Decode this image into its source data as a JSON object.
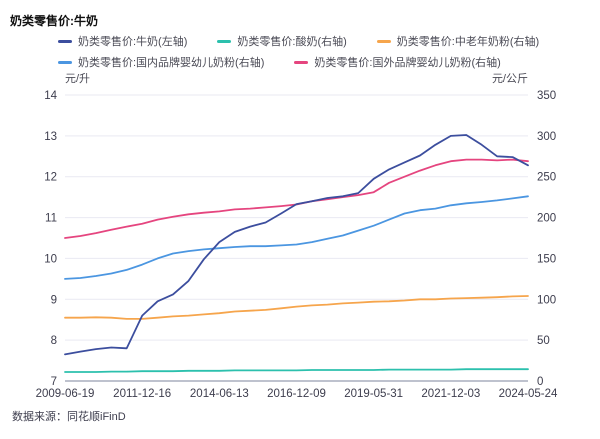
{
  "title": "奶类零售价:牛奶",
  "footer": {
    "source": "数据来源：同花顺iFinD"
  },
  "colors": {
    "milk": "#3c4e9e",
    "yogurt": "#2cc0ad",
    "senior_powder": "#f6a54c",
    "domestic_infant": "#4b96e1",
    "foreign_infant": "#e5457f",
    "grid": "#e9e9f2",
    "axis_line": "#a9adbe",
    "tick_text": "#3d3d4d"
  },
  "chart_data": {
    "type": "line",
    "title": "奶类零售价:牛奶",
    "x_tick_labels": [
      "2009-06-19",
      "2011-12-16",
      "2014-06-13",
      "2016-12-09",
      "2019-05-31",
      "2021-12-03",
      "2024-05-24"
    ],
    "left_axis": {
      "unit": "元/升",
      "min": 7,
      "max": 14,
      "ticks": [
        14,
        13,
        12,
        11,
        10,
        9,
        8,
        7
      ]
    },
    "right_axis": {
      "unit": "元/公斤",
      "min": 0,
      "max": 350,
      "ticks": [
        350,
        300,
        250,
        200,
        150,
        100,
        50,
        0
      ]
    },
    "grid": true,
    "legend_position": "top",
    "series": [
      {
        "name": "奶类零售价:牛奶(左轴)",
        "axis": "left",
        "color": "#3c4e9e",
        "values": [
          7.65,
          7.72,
          7.78,
          7.82,
          7.8,
          8.6,
          8.95,
          9.12,
          9.45,
          9.98,
          10.4,
          10.65,
          10.78,
          10.88,
          11.1,
          11.33,
          11.4,
          11.48,
          11.52,
          11.6,
          11.95,
          12.18,
          12.35,
          12.52,
          12.78,
          13.0,
          13.02,
          12.78,
          12.5,
          12.48,
          12.28
        ]
      },
      {
        "name": "奶类零售价:酸奶(右轴)",
        "axis": "right",
        "color": "#2cc0ad",
        "values": [
          11,
          11,
          11,
          11.5,
          11.5,
          12,
          12,
          12,
          12.5,
          12.5,
          12.5,
          13,
          13,
          13,
          13,
          13,
          13.5,
          13.5,
          13.5,
          13.5,
          13.5,
          14,
          14,
          14,
          14,
          14,
          14.5,
          14.5,
          14.5,
          14.5,
          14.5
        ]
      },
      {
        "name": "奶类零售价:中老年奶粉(右轴)",
        "axis": "right",
        "color": "#f6a54c",
        "values": [
          77.5,
          77.5,
          78,
          77.5,
          76,
          76,
          77.5,
          79,
          80,
          81.5,
          83,
          85,
          86,
          87,
          89,
          91,
          92.5,
          93.5,
          95,
          96,
          97,
          97.5,
          98.5,
          100,
          100,
          101,
          101.5,
          102,
          102.5,
          103.5,
          104
        ]
      },
      {
        "name": "奶类零售价:国内品牌婴幼儿奶粉(右轴)",
        "axis": "right",
        "color": "#4b96e1",
        "values": [
          125,
          126,
          128.5,
          131.5,
          136,
          142.5,
          150,
          156,
          159,
          161,
          162.5,
          164,
          165,
          165,
          166,
          167,
          170,
          174,
          178,
          184,
          190,
          197.5,
          205,
          209,
          211,
          215,
          217.5,
          219,
          221,
          223.5,
          226
        ]
      },
      {
        "name": "奶类零售价:国外品牌婴幼儿奶粉(右轴)",
        "axis": "right",
        "color": "#e5457f",
        "values": [
          175,
          177.5,
          181,
          185,
          189,
          192.5,
          197.5,
          201,
          204,
          206,
          207.5,
          210,
          211,
          212.5,
          214,
          216,
          220,
          222.5,
          225,
          227.5,
          231,
          242.5,
          250,
          257.5,
          264,
          269,
          271,
          271,
          270,
          271,
          269
        ]
      }
    ],
    "legend_rows": [
      [
        0,
        1,
        2
      ],
      [
        3,
        4
      ]
    ],
    "draw_order": [
      1,
      2,
      3,
      4,
      0
    ]
  }
}
